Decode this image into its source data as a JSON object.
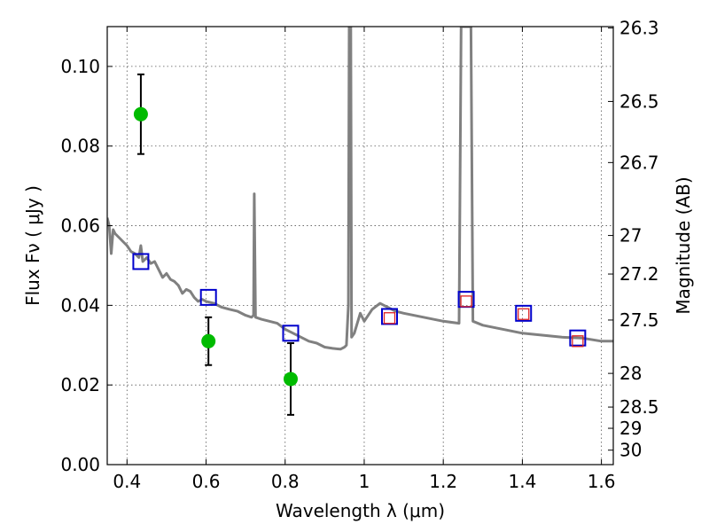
{
  "chart_data": {
    "type": "line",
    "xlabel": "Wavelength  λ (μm)",
    "ylabel": "Flux  Fν  ( μJy )",
    "y2label": "Magnitude (AB)",
    "xlim": [
      0.35,
      1.63
    ],
    "ylim": [
      0.0,
      0.11
    ],
    "grid": true,
    "x_ticks": [
      {
        "value": 0.4,
        "label": "0.4"
      },
      {
        "value": 0.6,
        "label": "0.6"
      },
      {
        "value": 0.8,
        "label": "0.8"
      },
      {
        "value": 1.0,
        "label": "1"
      },
      {
        "value": 1.2,
        "label": "1.2"
      },
      {
        "value": 1.4,
        "label": "1.4"
      },
      {
        "value": 1.6,
        "label": "1.6"
      }
    ],
    "y_ticks": [
      {
        "value": 0.0,
        "label": "0.00"
      },
      {
        "value": 0.02,
        "label": "0.02"
      },
      {
        "value": 0.04,
        "label": "0.04"
      },
      {
        "value": 0.06,
        "label": "0.06"
      },
      {
        "value": 0.08,
        "label": "0.08"
      },
      {
        "value": 0.1,
        "label": "0.10"
      }
    ],
    "mag_ticks": [
      {
        "value": 26.3,
        "label": "26.3"
      },
      {
        "value": 26.5,
        "label": "26.5"
      },
      {
        "value": 26.7,
        "label": "26.7"
      },
      {
        "value": 27.0,
        "label": "27"
      },
      {
        "value": 27.2,
        "label": "27.2"
      },
      {
        "value": 27.5,
        "label": "27.5"
      },
      {
        "value": 28.0,
        "label": "28"
      },
      {
        "value": 28.5,
        "label": "28.5"
      },
      {
        "value": 29.0,
        "label": "29"
      },
      {
        "value": 30.0,
        "label": "30"
      }
    ],
    "colors": {
      "sed": "#808080",
      "observed": "#00bb00",
      "model_photometry": "#0000cc",
      "filter_photometry": "#dd2222",
      "error_bar": "#000000"
    },
    "series": [
      {
        "role": "sed-model",
        "points": [
          [
            0.35,
            0.062
          ],
          [
            0.355,
            0.06
          ],
          [
            0.36,
            0.053
          ],
          [
            0.365,
            0.059
          ],
          [
            0.37,
            0.058
          ],
          [
            0.38,
            0.057
          ],
          [
            0.39,
            0.056
          ],
          [
            0.4,
            0.055
          ],
          [
            0.41,
            0.0535
          ],
          [
            0.42,
            0.053
          ],
          [
            0.43,
            0.052
          ],
          [
            0.435,
            0.055
          ],
          [
            0.44,
            0.051
          ],
          [
            0.45,
            0.052
          ],
          [
            0.46,
            0.0505
          ],
          [
            0.47,
            0.051
          ],
          [
            0.48,
            0.049
          ],
          [
            0.49,
            0.047
          ],
          [
            0.5,
            0.048
          ],
          [
            0.51,
            0.0465
          ],
          [
            0.52,
            0.046
          ],
          [
            0.53,
            0.045
          ],
          [
            0.54,
            0.043
          ],
          [
            0.55,
            0.044
          ],
          [
            0.56,
            0.0435
          ],
          [
            0.57,
            0.042
          ],
          [
            0.58,
            0.041
          ],
          [
            0.59,
            0.0415
          ],
          [
            0.6,
            0.041
          ],
          [
            0.62,
            0.0405
          ],
          [
            0.64,
            0.0395
          ],
          [
            0.66,
            0.039
          ],
          [
            0.68,
            0.0385
          ],
          [
            0.7,
            0.0375
          ],
          [
            0.715,
            0.037
          ],
          [
            0.72,
            0.0375
          ],
          [
            0.722,
            0.068
          ],
          [
            0.725,
            0.037
          ],
          [
            0.74,
            0.0365
          ],
          [
            0.76,
            0.036
          ],
          [
            0.78,
            0.0355
          ],
          [
            0.8,
            0.034
          ],
          [
            0.82,
            0.033
          ],
          [
            0.84,
            0.032
          ],
          [
            0.86,
            0.031
          ],
          [
            0.88,
            0.0305
          ],
          [
            0.9,
            0.0295
          ],
          [
            0.92,
            0.0292
          ],
          [
            0.94,
            0.029
          ],
          [
            0.95,
            0.0295
          ],
          [
            0.955,
            0.03
          ],
          [
            0.96,
            0.04
          ],
          [
            0.962,
            0.11
          ],
          [
            0.966,
            0.11
          ],
          [
            0.968,
            0.032
          ],
          [
            0.975,
            0.033
          ],
          [
            0.99,
            0.038
          ],
          [
            1.0,
            0.036
          ],
          [
            1.02,
            0.039
          ],
          [
            1.04,
            0.0405
          ],
          [
            1.05,
            0.04
          ],
          [
            1.06,
            0.0395
          ],
          [
            1.08,
            0.0385
          ],
          [
            1.1,
            0.038
          ],
          [
            1.15,
            0.037
          ],
          [
            1.2,
            0.036
          ],
          [
            1.24,
            0.0355
          ],
          [
            1.245,
            0.11
          ],
          [
            1.27,
            0.11
          ],
          [
            1.275,
            0.036
          ],
          [
            1.3,
            0.035
          ],
          [
            1.35,
            0.034
          ],
          [
            1.4,
            0.033
          ],
          [
            1.45,
            0.0325
          ],
          [
            1.5,
            0.032
          ],
          [
            1.55,
            0.0318
          ],
          [
            1.6,
            0.031
          ],
          [
            1.63,
            0.031
          ]
        ]
      },
      {
        "name": "",
        "role": "observed-flux",
        "points": [
          {
            "x": 0.435,
            "y": 0.088,
            "err": 0.01
          },
          {
            "x": 0.606,
            "y": 0.031,
            "err": 0.006
          },
          {
            "x": 0.814,
            "y": 0.0215,
            "err": 0.009
          }
        ]
      },
      {
        "role": "model-photometry",
        "points": [
          {
            "x": 0.435,
            "y": 0.051
          },
          {
            "x": 0.606,
            "y": 0.042
          },
          {
            "x": 0.814,
            "y": 0.033
          },
          {
            "x": 1.064,
            "y": 0.0372
          },
          {
            "x": 1.258,
            "y": 0.0415
          },
          {
            "x": 1.403,
            "y": 0.038
          },
          {
            "x": 1.54,
            "y": 0.0318
          }
        ]
      },
      {
        "role": "filter-photometry",
        "points": [
          {
            "x": 1.064,
            "y": 0.0368
          },
          {
            "x": 1.258,
            "y": 0.041
          },
          {
            "x": 1.403,
            "y": 0.0378
          },
          {
            "x": 1.54,
            "y": 0.031
          }
        ]
      }
    ]
  }
}
